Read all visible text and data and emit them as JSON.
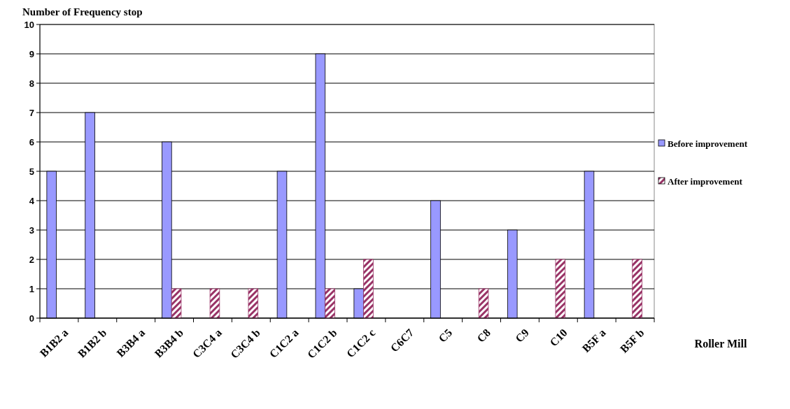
{
  "chart_data": {
    "type": "bar",
    "title": "Number of Frequency stop",
    "xlabel": "Roller Mill",
    "categories": [
      "B1B2 a",
      "B1B2 b",
      "B3B4 a",
      "B3B4 b",
      "C3C4 a",
      "C3C4 b",
      "C1C2 a",
      "C1C2 b",
      "C1C2 c",
      "C6C7",
      "C5",
      "C8",
      "C9",
      "C10",
      "B5F a",
      "B5F b"
    ],
    "series": [
      {
        "name": "Before improvement",
        "color": "#9999ff",
        "values": [
          5,
          7,
          0,
          6,
          0,
          0,
          5,
          9,
          1,
          0,
          4,
          0,
          3,
          0,
          5,
          0
        ]
      },
      {
        "name": "After improvement",
        "color": "#993366",
        "values": [
          0,
          0,
          0,
          1,
          1,
          1,
          0,
          1,
          2,
          0,
          0,
          1,
          0,
          2,
          0,
          2
        ]
      }
    ],
    "ylim": [
      0,
      10
    ],
    "yticks": [
      0,
      1,
      2,
      3,
      4,
      5,
      6,
      7,
      8,
      9,
      10
    ],
    "grid": "y",
    "legend": "right"
  }
}
